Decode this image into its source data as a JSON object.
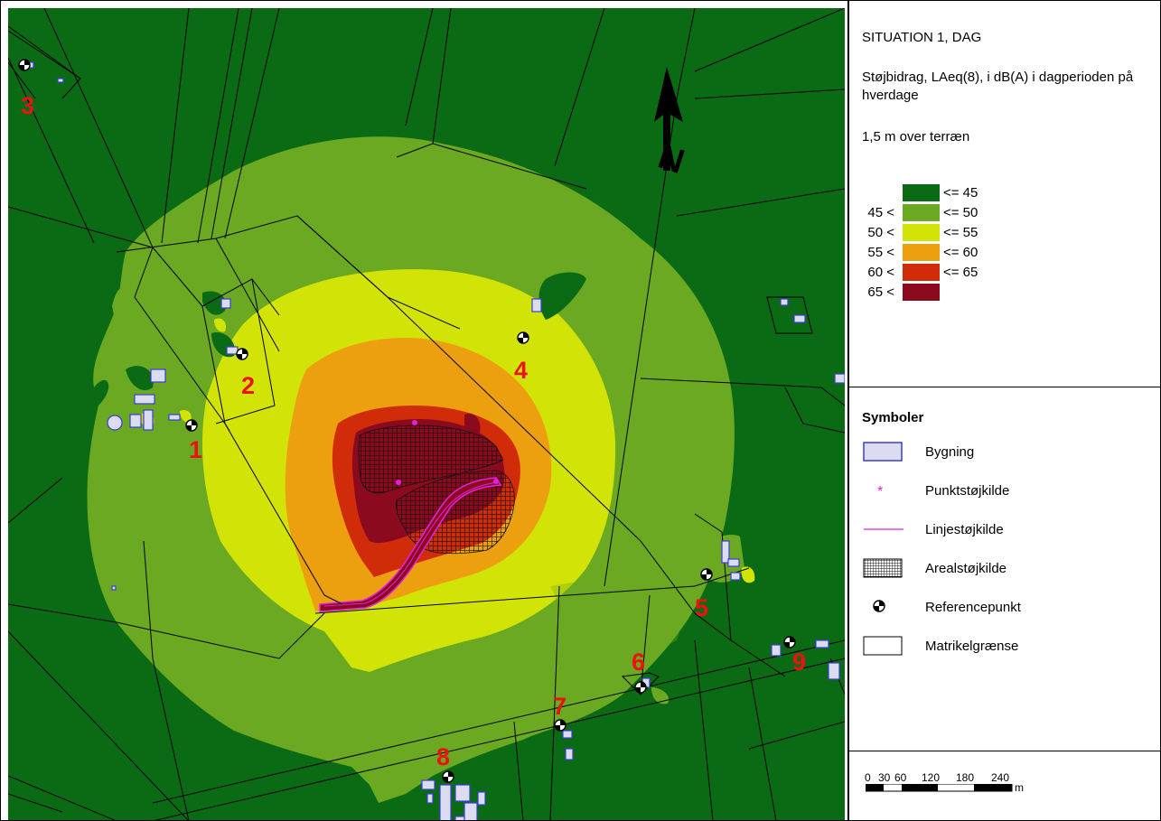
{
  "title": "SITUATION 1, DAG",
  "subtitle": "Støjbidrag, LAeq(8), i dB(A) i dagperioden på hverdage",
  "height_note": "1,5 m over terræn",
  "noise_legend": [
    {
      "lower": "",
      "upper": "<= 45",
      "color": "#0b6a14"
    },
    {
      "lower": "45 <",
      "upper": "<= 50",
      "color": "#6aa921"
    },
    {
      "lower": "50 <",
      "upper": "<= 55",
      "color": "#d2e407"
    },
    {
      "lower": "55 <",
      "upper": "<= 60",
      "color": "#ec9f0f"
    },
    {
      "lower": "60 <",
      "upper": "<= 65",
      "color": "#d02c0a"
    },
    {
      "lower": "65 <",
      "upper": "",
      "color": "#8c0a1e"
    }
  ],
  "symbols": {
    "heading": "Symboler",
    "items": [
      {
        "label": "Bygning",
        "icon": "building-icon"
      },
      {
        "label": "Punktstøjkilde",
        "icon": "point-source-icon"
      },
      {
        "label": "Linjestøjkilde",
        "icon": "line-source-icon"
      },
      {
        "label": "Arealstøjkilde",
        "icon": "area-source-icon"
      },
      {
        "label": "Referencepunkt",
        "icon": "reference-point-icon"
      },
      {
        "label": "Matrikelgrænse",
        "icon": "cadastral-boundary-icon"
      }
    ]
  },
  "scale_bar": {
    "labels": [
      "0",
      "30",
      "60",
      "120",
      "180",
      "240"
    ],
    "unit": "m"
  },
  "north_arrow": {
    "label": "N",
    "icon": "north-arrow-icon"
  },
  "reference_points": [
    "1",
    "2",
    "3",
    "4",
    "5",
    "6",
    "7",
    "8",
    "9"
  ],
  "colors": {
    "building_fill": "#dcdcf0",
    "building_stroke": "#3c3cd2",
    "point_source": "#e020e0",
    "line_source": "#e020e0",
    "reference_label": "#ee1111"
  }
}
